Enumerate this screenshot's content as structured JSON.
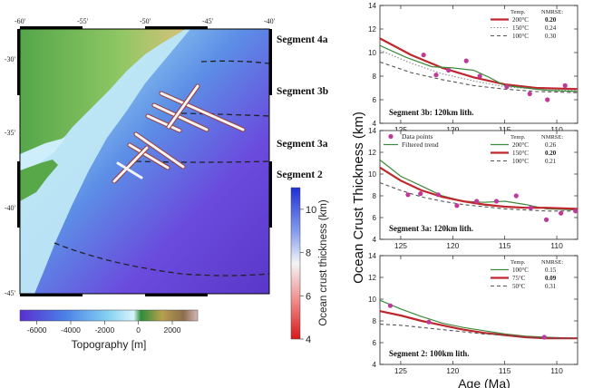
{
  "map": {
    "lon_ticks": [
      "-60'",
      "-55'",
      "-50'",
      "-45'",
      "-40'"
    ],
    "lat_ticks": [
      "-30'",
      "-35'",
      "-40'",
      "-45'"
    ],
    "segment_labels": [
      "Segment 4a",
      "Segment 3b",
      "Segment 3a",
      "Segment 2"
    ],
    "colors": {
      "land": "#3f9a3e",
      "shelf": "#a9ddf0",
      "deep": "#5b3fd2",
      "profile": "#f2f2f2"
    }
  },
  "crust_colorbar": {
    "label": "Ocean crust thickness (km)",
    "ticks": [
      "10",
      "8",
      "6",
      "4"
    ],
    "range": [
      4,
      11
    ]
  },
  "topo_colorbar": {
    "label": "Topography [m]",
    "ticks": [
      "-6000",
      "-4000",
      "-2000",
      "0",
      "2000"
    ],
    "range": [
      -7000,
      3500
    ]
  },
  "chart_data": [
    {
      "type": "line",
      "ylabel": "Ocean Crust Thickness (km)",
      "xlabel": "Age (Ma)",
      "xlim": [
        127,
        108
      ],
      "ylim": [
        4,
        14
      ],
      "xticks": [
        125,
        120,
        115,
        110
      ],
      "yticks": [
        4,
        6,
        8,
        10,
        12,
        14
      ],
      "annotation": "Segment 3b: 120km lith.",
      "legend": {
        "header": [
          "Temp.",
          "NMRSE:"
        ],
        "entries": [
          {
            "temp": "200°C",
            "nmrse": "0.20",
            "style": "solid-red"
          },
          {
            "temp": "150°C",
            "nmrse": "0.24",
            "style": "dotted-gray"
          },
          {
            "temp": "100°C",
            "nmrse": "0.30",
            "style": "dashed-gray"
          }
        ]
      },
      "points": [
        [
          122.8,
          9.8
        ],
        [
          121.6,
          8.1
        ],
        [
          120.4,
          8.5
        ],
        [
          118.7,
          9.3
        ],
        [
          117.4,
          8.0
        ],
        [
          114.8,
          7.1
        ],
        [
          112.6,
          6.5
        ],
        [
          110.9,
          6.0
        ],
        [
          109.2,
          7.2
        ]
      ],
      "series": [
        {
          "style": "solid-red",
          "x": [
            127,
            124,
            121,
            118,
            115,
            112,
            108
          ],
          "y": [
            11.2,
            9.8,
            8.7,
            7.9,
            7.3,
            7.0,
            6.9
          ]
        },
        {
          "style": "dotted-gray",
          "x": [
            127,
            124,
            121,
            118,
            115,
            112,
            108
          ],
          "y": [
            10.2,
            9.1,
            8.2,
            7.6,
            7.1,
            6.9,
            6.8
          ]
        },
        {
          "style": "dashed-gray",
          "x": [
            127,
            124,
            121,
            118,
            115,
            112,
            108
          ],
          "y": [
            9.2,
            8.3,
            7.7,
            7.2,
            6.9,
            6.7,
            6.6
          ]
        },
        {
          "style": "solid-green",
          "x": [
            127,
            124.5,
            122,
            120,
            118,
            116.5,
            115,
            113,
            111,
            108
          ],
          "y": [
            10.6,
            9.6,
            8.8,
            8.7,
            8.5,
            7.9,
            7.2,
            7.0,
            6.8,
            6.7
          ]
        }
      ]
    },
    {
      "type": "line",
      "ylabel": "Ocean Crust Thickness (km)",
      "xlabel": "Age (Ma)",
      "xlim": [
        127,
        108
      ],
      "ylim": [
        4,
        14
      ],
      "xticks": [
        125,
        120,
        115,
        110
      ],
      "yticks": [
        4,
        6,
        8,
        10,
        12,
        14
      ],
      "annotation": "Segment 3a: 120km lith.",
      "legend_left": [
        {
          "label": "Data points",
          "style": "dot"
        },
        {
          "label": "Filtered trend",
          "style": "solid-green"
        }
      ],
      "legend": {
        "header": [
          "Temp.",
          "NMRSE:"
        ],
        "entries": [
          {
            "temp": "200°C",
            "nmrse": "0.26",
            "style": "solid-green"
          },
          {
            "temp": "150°C",
            "nmrse": "0.20",
            "style": "solid-red"
          },
          {
            "temp": "100°C",
            "nmrse": "0.21",
            "style": "dashed-gray"
          }
        ]
      },
      "points": [
        [
          124.3,
          8.1
        ],
        [
          123.1,
          8.2
        ],
        [
          121.4,
          8.1
        ],
        [
          119.6,
          7.1
        ],
        [
          117.7,
          7.5
        ],
        [
          115.8,
          7.5
        ],
        [
          113.9,
          8.0
        ],
        [
          112.5,
          6.9
        ],
        [
          111.0,
          5.8
        ],
        [
          109.6,
          6.4
        ],
        [
          108.2,
          6.6
        ]
      ],
      "series": [
        {
          "style": "solid-green",
          "x": [
            127,
            125,
            123,
            121,
            119,
            117,
            115,
            113,
            111,
            108
          ],
          "y": [
            11.3,
            9.8,
            8.9,
            8.0,
            7.5,
            7.4,
            7.5,
            7.2,
            6.8,
            6.7
          ]
        },
        {
          "style": "solid-red",
          "x": [
            127,
            125,
            123,
            121,
            119,
            117,
            115,
            113,
            111,
            108
          ],
          "y": [
            10.6,
            9.4,
            8.5,
            7.9,
            7.5,
            7.2,
            7.0,
            6.9,
            6.9,
            6.8
          ]
        },
        {
          "style": "dashed-gray",
          "x": [
            127,
            125,
            123,
            121,
            119,
            117,
            115,
            113,
            111,
            108
          ],
          "y": [
            9.2,
            8.5,
            7.9,
            7.5,
            7.2,
            7.0,
            6.8,
            6.7,
            6.6,
            6.6
          ]
        }
      ]
    },
    {
      "type": "line",
      "ylabel": "Ocean Crust Thickness (km)",
      "xlabel": "Age (Ma)",
      "xlim": [
        127,
        108
      ],
      "ylim": [
        4,
        14
      ],
      "xticks": [
        125,
        120,
        115,
        110
      ],
      "yticks": [
        4,
        6,
        8,
        10,
        12,
        14
      ],
      "annotation": "Segment 2: 100km lith.",
      "legend": {
        "header": [
          "Temp.",
          "NMRSE:"
        ],
        "entries": [
          {
            "temp": "100°C",
            "nmrse": "0.15",
            "style": "solid-green"
          },
          {
            "temp": "75°C",
            "nmrse": "0.09",
            "style": "solid-red"
          },
          {
            "temp": "50°C",
            "nmrse": "0.31",
            "style": "dashed-gray"
          }
        ]
      },
      "points": [
        [
          126.0,
          9.4
        ],
        [
          122.3,
          7.9
        ],
        [
          111.2,
          6.5
        ]
      ],
      "series": [
        {
          "style": "solid-green",
          "x": [
            127,
            125,
            123,
            121,
            119,
            117,
            115,
            113,
            111,
            108
          ],
          "y": [
            9.9,
            9.1,
            8.4,
            7.8,
            7.4,
            7.1,
            6.8,
            6.6,
            6.5,
            6.4
          ]
        },
        {
          "style": "solid-red",
          "x": [
            127,
            125,
            123,
            121,
            119,
            117,
            115,
            113,
            111,
            108
          ],
          "y": [
            8.9,
            8.5,
            8.0,
            7.6,
            7.2,
            6.9,
            6.7,
            6.5,
            6.4,
            6.4
          ]
        },
        {
          "style": "dashed-gray",
          "x": [
            127,
            125,
            123,
            121,
            119,
            117,
            115,
            113,
            111,
            108
          ],
          "y": [
            7.7,
            7.6,
            7.4,
            7.2,
            7.0,
            6.8,
            6.7,
            6.5,
            6.4,
            6.4
          ]
        }
      ]
    }
  ]
}
